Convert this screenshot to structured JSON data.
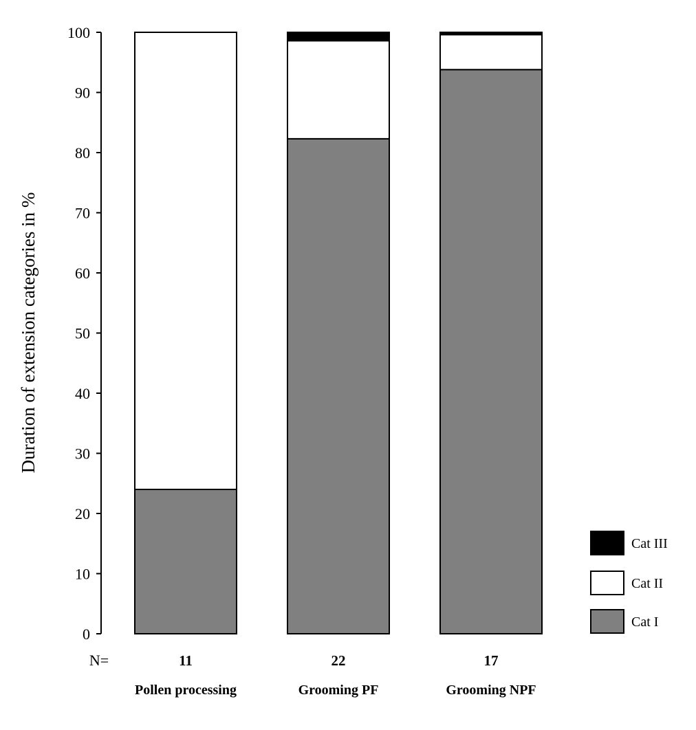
{
  "chart_data": {
    "type": "bar",
    "stacked": true,
    "ylabel": "Duration of extension categories in %",
    "ylim": [
      0,
      100
    ],
    "yticks": [
      0,
      10,
      20,
      30,
      40,
      50,
      60,
      70,
      80,
      90,
      100
    ],
    "categories": [
      "Pollen processing",
      "Grooming PF",
      "Grooming NPF"
    ],
    "n_label": "N=",
    "n_values": [
      "11",
      "22",
      "17"
    ],
    "series": [
      {
        "name": "Cat I",
        "color": "#808080",
        "values": [
          24,
          82.3,
          93.8
        ]
      },
      {
        "name": "Cat II",
        "color": "#ffffff",
        "values": [
          76,
          16.3,
          5.8
        ]
      },
      {
        "name": "Cat III",
        "color": "#000000",
        "values": [
          0,
          1.4,
          0.4
        ]
      }
    ],
    "legend_order": [
      "Cat III",
      "Cat II",
      "Cat I"
    ],
    "legend_position": "bottom-right",
    "grid": false
  }
}
